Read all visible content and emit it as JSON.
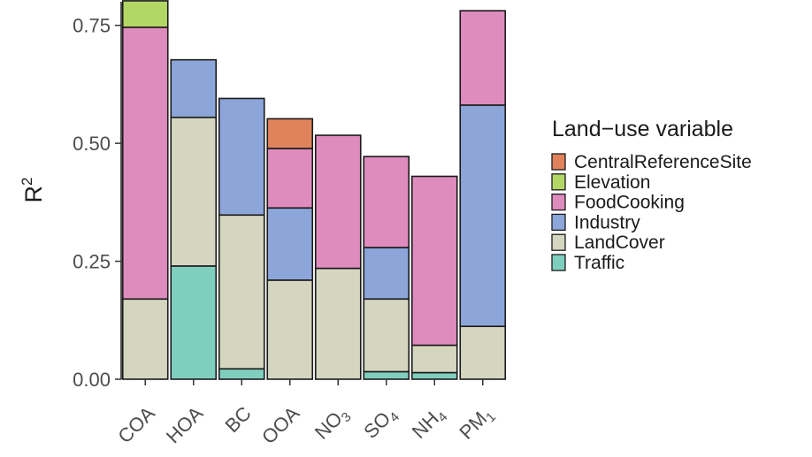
{
  "chart_data": {
    "type": "bar",
    "stacked": true,
    "ylabel": "R",
    "ylabel_superscript": "2",
    "ylim": [
      0,
      0.8
    ],
    "yticks": [
      "0.00",
      "0.25",
      "0.50",
      "0.75"
    ],
    "ytick_values": [
      0,
      0.25,
      0.5,
      0.75
    ],
    "categories": [
      {
        "label": "COA",
        "sub": ""
      },
      {
        "label": "HOA",
        "sub": ""
      },
      {
        "label": "BC",
        "sub": ""
      },
      {
        "label": "OOA",
        "sub": ""
      },
      {
        "label": "NO",
        "sub": "3"
      },
      {
        "label": "SO",
        "sub": "4"
      },
      {
        "label": "NH",
        "sub": "4"
      },
      {
        "label": "PM",
        "sub": "1"
      }
    ],
    "legend_title": "Land−use variable",
    "legend_position": "right",
    "series": [
      {
        "name": "Traffic",
        "color": "#7fcfbf",
        "values": [
          0,
          0.24,
          0.022,
          0,
          0,
          0.016,
          0.014,
          0
        ]
      },
      {
        "name": "LandCover",
        "color": "#d4d6bf",
        "values": [
          0.17,
          0.315,
          0.326,
          0.21,
          0.235,
          0.154,
          0.058,
          0.112
        ]
      },
      {
        "name": "Industry",
        "color": "#8ca6d9",
        "values": [
          0,
          0.122,
          0.247,
          0.153,
          0,
          0.109,
          0,
          0.469
        ]
      },
      {
        "name": "FoodCooking",
        "color": "#de8bbe",
        "values": [
          0.576,
          0,
          0,
          0.126,
          0.282,
          0.193,
          0.358,
          0.2
        ]
      },
      {
        "name": "Elevation",
        "color": "#b3d765",
        "values": [
          0.056,
          0,
          0,
          0,
          0,
          0,
          0,
          0
        ]
      },
      {
        "name": "CentralReferenceSite",
        "color": "#e0835c",
        "values": [
          0,
          0,
          0,
          0.063,
          0,
          0,
          0,
          0
        ]
      }
    ],
    "legend_order": [
      "CentralReferenceSite",
      "Elevation",
      "FoodCooking",
      "Industry",
      "LandCover",
      "Traffic"
    ],
    "grid": false,
    "bar_outline_color": "#1a1a1a",
    "axis_color": "#1a1a1a"
  }
}
